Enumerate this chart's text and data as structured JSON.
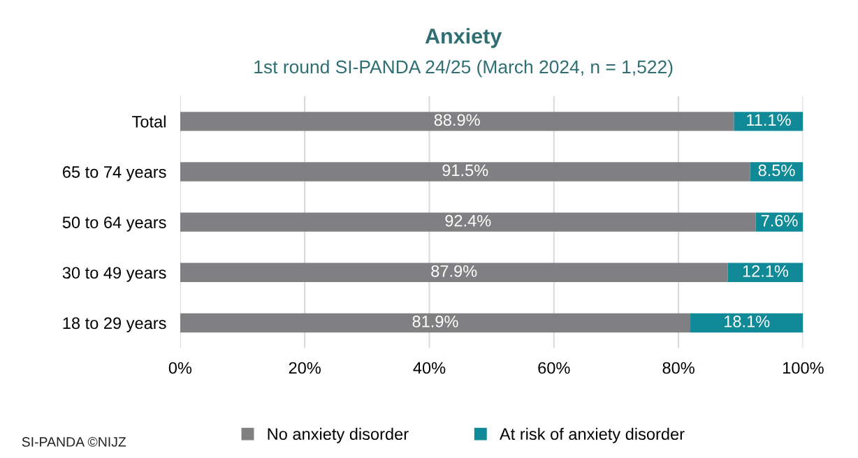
{
  "chart_data": {
    "type": "bar",
    "orientation": "horizontal",
    "stacked": true,
    "title": "Anxiety",
    "subtitle": "1st round SI-PANDA 24/25 (March 2024, n = 1,522)",
    "categories": [
      "Total",
      "65 to 74 years",
      "50 to 64 years",
      "30 to 49 years",
      "18 to 29 years"
    ],
    "series": [
      {
        "name": "No anxiety disorder",
        "color": "#808083",
        "values": [
          88.9,
          91.5,
          92.4,
          87.9,
          81.9
        ],
        "value_labels": [
          "88.9%",
          "91.5%",
          "92.4%",
          "87.9%",
          "81.9%"
        ]
      },
      {
        "name": "At risk of anxiety disorder",
        "color": "#0f8a96",
        "values": [
          11.1,
          8.5,
          7.6,
          12.1,
          18.1
        ],
        "value_labels": [
          "11.1%",
          "8.5%",
          "7.6%",
          "12.1%",
          "18.1%"
        ]
      }
    ],
    "xlim": [
      0,
      100
    ],
    "xticks": [
      {
        "value": 0,
        "label": "0%"
      },
      {
        "value": 20,
        "label": "20%"
      },
      {
        "value": 40,
        "label": "40%"
      },
      {
        "value": 60,
        "label": "60%"
      },
      {
        "value": 80,
        "label": "80%"
      },
      {
        "value": 100,
        "label": "100%"
      }
    ],
    "grid": "x",
    "legend": "bottom",
    "annotations": [
      "SI-PANDA ©NIJZ"
    ]
  }
}
